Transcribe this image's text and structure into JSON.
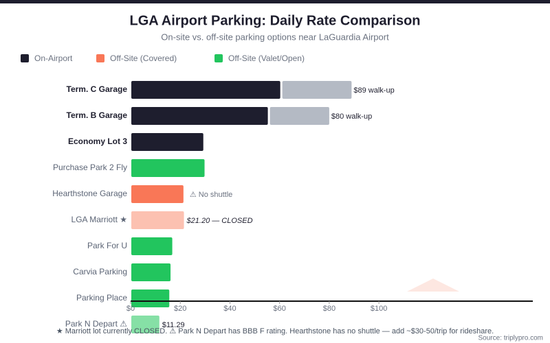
{
  "chart_data": {
    "type": "hbar",
    "title": "LGA Airport Parking: Daily Rate Comparison",
    "subtitle": "On-site vs. off-site parking options near LaGuardia Airport",
    "legend": [
      {
        "name": "On-Airport",
        "color": "#1e1e2e"
      },
      {
        "name": "Off-Site (Covered)",
        "color": "#f97757"
      },
      {
        "name": "Off-Site (Valet/Open)",
        "color": "#22c55e"
      }
    ],
    "categories": [
      "Term. C Garage",
      "Term. B Garage",
      "Economy Lot 3",
      "Purchase Park 2 Fly",
      "Hearthstone Garage",
      "LGA Marriott ★",
      "Park For U",
      "Carvia Parking",
      "Parking Place",
      "Park N Depart ⚠"
    ],
    "bold": [
      true,
      true,
      true,
      false,
      false,
      false,
      false,
      false,
      false,
      false
    ],
    "values": [
      60,
      55,
      29,
      29.5,
      21,
      21.2,
      16.5,
      15.8,
      15.3,
      11.29
    ],
    "colors": [
      "#1e1e2e",
      "#1e1e2e",
      "#1e1e2e",
      "#22c55e",
      "#f97757",
      "#fcc1b1",
      "#22c55e",
      "#22c55e",
      "#22c55e",
      "#86e0a6"
    ],
    "value_labels": [
      null,
      null,
      null,
      null,
      null,
      "$21.20 — CLOSED",
      null,
      null,
      null,
      "$11.29"
    ],
    "notes": [
      null,
      null,
      null,
      null,
      "⚠ No shuttle",
      null,
      null,
      null,
      null,
      null
    ],
    "walkup": {
      "color": "#b4bac4",
      "values": [
        89,
        80,
        null,
        null,
        null,
        null,
        null,
        null,
        null,
        null
      ],
      "value_labels": [
        "$89 walk-up",
        "$80 walk-up",
        null,
        null,
        null,
        null,
        null,
        null,
        null,
        null
      ]
    },
    "xlim": [
      0,
      162
    ],
    "xticks": [
      {
        "value": 0,
        "label": "$0"
      },
      {
        "value": 20,
        "label": "$20"
      },
      {
        "value": 40,
        "label": "$40"
      },
      {
        "value": 60,
        "label": "$60"
      },
      {
        "value": 80,
        "label": "$80"
      },
      {
        "value": 100,
        "label": "$100"
      }
    ],
    "footnote": "★ Marriott lot currently CLOSED. ⚠ Park N Depart has BBB F rating. Hearthstone has no shuttle — add ~$30-50/trip for rideshare.",
    "source": "Source: triplypro.com"
  }
}
